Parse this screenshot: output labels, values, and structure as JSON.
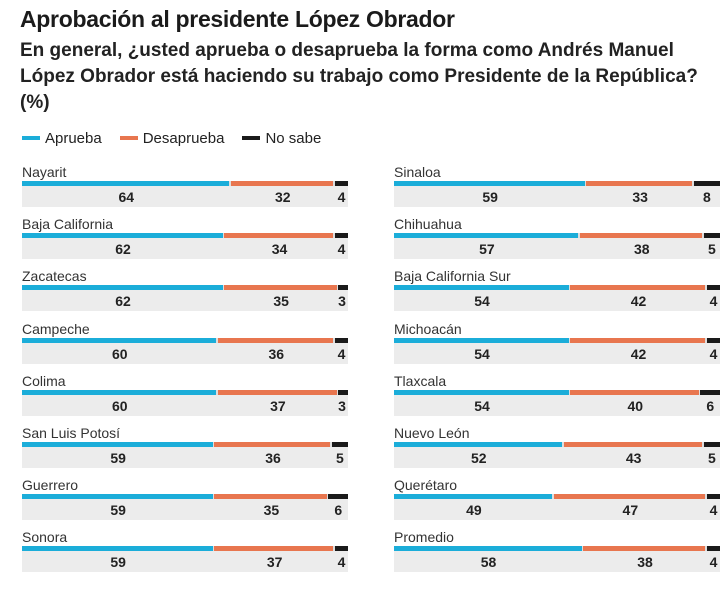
{
  "header": {
    "title": "Aprobación al presidente López Obrador",
    "subtitle": "En general, ¿usted aprueba o desaprueba la forma como Andrés Manuel López Obrador está haciendo su trabajo como Presidente de la República? (%)"
  },
  "colors": {
    "aprueba": "#1badd9",
    "desaprueba": "#e8764f",
    "no_sabe": "#1a1a1a"
  },
  "chart_data": {
    "type": "bar",
    "stacked": true,
    "orientation": "horizontal",
    "title": "Aprobación al presidente López Obrador",
    "legend_position": "top-left",
    "series": [
      {
        "name": "Aprueba",
        "color": "#1badd9"
      },
      {
        "name": "Desaprueba",
        "color": "#e8764f"
      },
      {
        "name": "No sabe",
        "color": "#1a1a1a"
      }
    ],
    "rows": [
      {
        "label": "Nayarit",
        "values": [
          64,
          32,
          4
        ]
      },
      {
        "label": "Baja California",
        "values": [
          62,
          34,
          4
        ]
      },
      {
        "label": "Zacatecas",
        "values": [
          62,
          35,
          3
        ]
      },
      {
        "label": "Campeche",
        "values": [
          60,
          36,
          4
        ]
      },
      {
        "label": "Colima",
        "values": [
          60,
          37,
          3
        ]
      },
      {
        "label": "San Luis Potosí",
        "values": [
          59,
          36,
          5
        ]
      },
      {
        "label": "Guerrero",
        "values": [
          59,
          35,
          6
        ]
      },
      {
        "label": "Sonora",
        "values": [
          59,
          37,
          4
        ]
      },
      {
        "label": "Sinaloa",
        "values": [
          59,
          33,
          8
        ]
      },
      {
        "label": "Chihuahua",
        "values": [
          57,
          38,
          5
        ]
      },
      {
        "label": "Baja California Sur",
        "values": [
          54,
          42,
          4
        ]
      },
      {
        "label": "Michoacán",
        "values": [
          54,
          42,
          4
        ]
      },
      {
        "label": "Tlaxcala",
        "values": [
          54,
          40,
          6
        ]
      },
      {
        "label": "Nuevo León",
        "values": [
          52,
          43,
          5
        ]
      },
      {
        "label": "Querétaro",
        "values": [
          49,
          47,
          4
        ]
      },
      {
        "label": "Promedio",
        "values": [
          58,
          38,
          4
        ]
      }
    ]
  }
}
